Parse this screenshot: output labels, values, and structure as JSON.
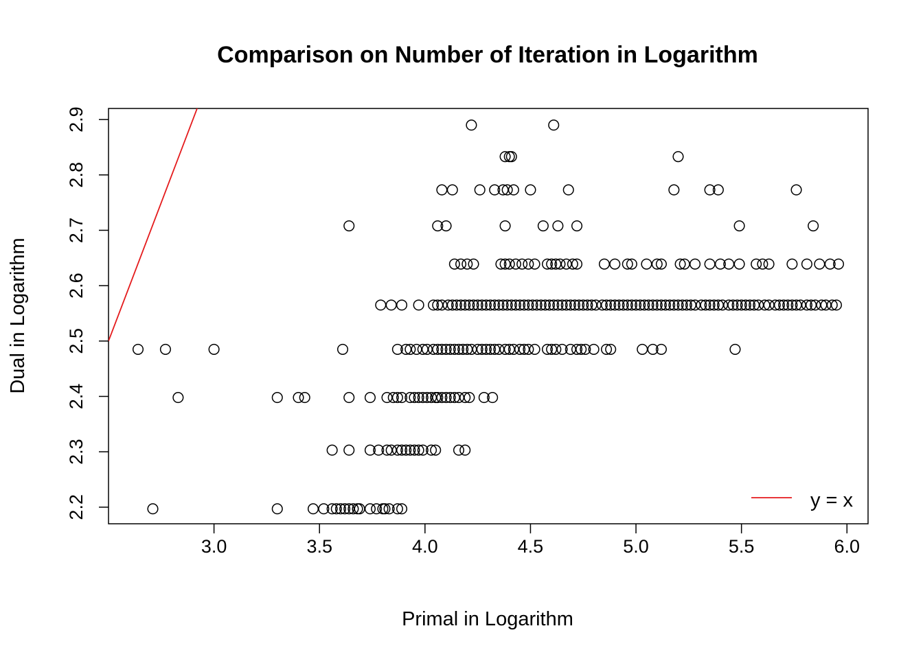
{
  "chart_data": {
    "type": "scatter",
    "title": "Comparison on Number of Iteration in Logarithm",
    "xlabel": "Primal in Logarithm",
    "ylabel": "Dual in Logarithm",
    "xlim": [
      2.5,
      6.1
    ],
    "ylim": [
      2.17,
      2.92
    ],
    "x_ticks": [
      "3.0",
      "3.5",
      "4.0",
      "4.5",
      "5.0",
      "5.5",
      "6.0"
    ],
    "y_ticks": [
      "2.2",
      "2.3",
      "2.4",
      "2.5",
      "2.6",
      "2.7",
      "2.8",
      "2.9"
    ],
    "grid": false,
    "legend_position": "bottom-right",
    "marker_color": "#000000",
    "line_color": "#e41a1c",
    "reference_line": {
      "name": "y = x",
      "slope": 1,
      "intercept": 0
    },
    "series": [
      {
        "levels": [
          {
            "y": 2.197,
            "x": [
              2.71,
              3.3,
              3.47,
              3.52,
              3.56,
              3.58,
              3.6,
              3.62,
              3.64,
              3.66,
              3.68,
              3.69,
              3.74,
              3.77,
              3.8,
              3.81,
              3.83,
              3.87,
              3.89
            ]
          },
          {
            "y": 2.303,
            "x": [
              3.56,
              3.64,
              3.74,
              3.78,
              3.82,
              3.84,
              3.87,
              3.89,
              3.91,
              3.93,
              3.95,
              3.97,
              3.99,
              4.03,
              4.05,
              4.16,
              4.19
            ]
          },
          {
            "y": 2.398,
            "x": [
              2.83,
              3.3,
              3.4,
              3.43,
              3.64,
              3.74,
              3.82,
              3.85,
              3.87,
              3.89,
              3.93,
              3.95,
              3.97,
              3.99,
              4.01,
              4.03,
              4.05,
              4.06,
              4.08,
              4.1,
              4.12,
              4.14,
              4.16,
              4.19,
              4.21,
              4.28,
              4.32
            ]
          },
          {
            "y": 2.485,
            "x": [
              2.64,
              2.77,
              3.0,
              3.61,
              3.87,
              3.91,
              3.93,
              3.96,
              3.99,
              4.01,
              4.04,
              4.06,
              4.08,
              4.1,
              4.12,
              4.14,
              4.16,
              4.18,
              4.2,
              4.22,
              4.25,
              4.27,
              4.29,
              4.31,
              4.33,
              4.35,
              4.38,
              4.4,
              4.42,
              4.45,
              4.47,
              4.49,
              4.52,
              4.58,
              4.6,
              4.62,
              4.65,
              4.69,
              4.72,
              4.74,
              4.76,
              4.8,
              4.86,
              4.88,
              5.03,
              5.08,
              5.12,
              5.47
            ]
          },
          {
            "y": 2.565,
            "x": [
              3.79,
              3.84,
              3.89,
              3.97,
              4.04,
              4.06,
              4.08,
              4.11,
              4.13,
              4.15,
              4.17,
              4.19,
              4.21,
              4.23,
              4.25,
              4.27,
              4.29,
              4.31,
              4.33,
              4.35,
              4.37,
              4.39,
              4.41,
              4.43,
              4.45,
              4.47,
              4.49,
              4.51,
              4.53,
              4.55,
              4.57,
              4.59,
              4.61,
              4.63,
              4.65,
              4.67,
              4.69,
              4.71,
              4.73,
              4.75,
              4.77,
              4.79,
              4.81,
              4.84,
              4.86,
              4.88,
              4.9,
              4.92,
              4.94,
              4.96,
              4.98,
              5.0,
              5.02,
              5.04,
              5.06,
              5.08,
              5.1,
              5.12,
              5.14,
              5.16,
              5.18,
              5.2,
              5.22,
              5.24,
              5.26,
              5.28,
              5.31,
              5.33,
              5.35,
              5.37,
              5.39,
              5.41,
              5.44,
              5.46,
              5.48,
              5.5,
              5.52,
              5.54,
              5.56,
              5.58,
              5.61,
              5.63,
              5.66,
              5.68,
              5.7,
              5.72,
              5.74,
              5.76,
              5.78,
              5.81,
              5.83,
              5.85,
              5.88,
              5.9,
              5.93,
              5.95
            ]
          },
          {
            "y": 2.639,
            "x": [
              4.14,
              4.17,
              4.2,
              4.23,
              4.36,
              4.38,
              4.4,
              4.43,
              4.46,
              4.49,
              4.52,
              4.58,
              4.6,
              4.62,
              4.64,
              4.67,
              4.7,
              4.72,
              4.85,
              4.9,
              4.96,
              4.98,
              5.05,
              5.1,
              5.12,
              5.21,
              5.23,
              5.28,
              5.35,
              5.4,
              5.44,
              5.49,
              5.57,
              5.6,
              5.63,
              5.74,
              5.81,
              5.87,
              5.92,
              5.96
            ]
          },
          {
            "y": 2.708,
            "x": [
              3.64,
              4.06,
              4.1,
              4.38,
              4.56,
              4.63,
              4.72,
              5.49,
              5.84
            ]
          },
          {
            "y": 2.773,
            "x": [
              4.08,
              4.13,
              4.26,
              4.33,
              4.37,
              4.39,
              4.42,
              4.5,
              4.68,
              5.18,
              5.35,
              5.39,
              5.76
            ]
          },
          {
            "y": 2.833,
            "x": [
              4.38,
              4.4,
              4.41,
              5.2
            ]
          },
          {
            "y": 2.89,
            "x": [
              4.22,
              4.61
            ]
          }
        ]
      }
    ]
  }
}
